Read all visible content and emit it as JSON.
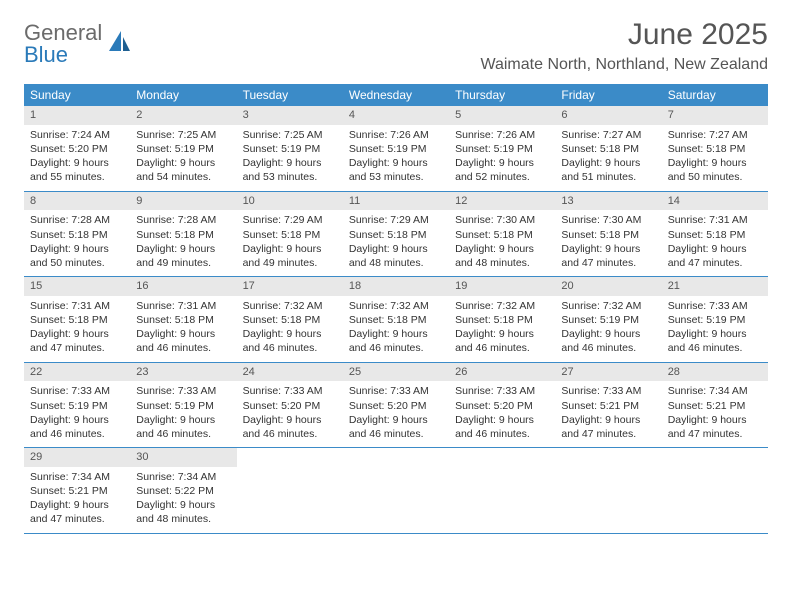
{
  "brand": {
    "part1": "General",
    "part2": "Blue"
  },
  "title": "June 2025",
  "location": "Waimate North, Northland, New Zealand",
  "colors": {
    "header_bg": "#3b8bc8",
    "header_text": "#ffffff",
    "daynum_bg": "#e8e8e8",
    "text": "#333333",
    "brand_gray": "#6b6b6b",
    "brand_blue": "#2a7ab9",
    "rule": "#3b8bc8"
  },
  "day_headers": [
    "Sunday",
    "Monday",
    "Tuesday",
    "Wednesday",
    "Thursday",
    "Friday",
    "Saturday"
  ],
  "weeks": [
    [
      {
        "n": "1",
        "sr": "Sunrise: 7:24 AM",
        "ss": "Sunset: 5:20 PM",
        "d1": "Daylight: 9 hours",
        "d2": "and 55 minutes."
      },
      {
        "n": "2",
        "sr": "Sunrise: 7:25 AM",
        "ss": "Sunset: 5:19 PM",
        "d1": "Daylight: 9 hours",
        "d2": "and 54 minutes."
      },
      {
        "n": "3",
        "sr": "Sunrise: 7:25 AM",
        "ss": "Sunset: 5:19 PM",
        "d1": "Daylight: 9 hours",
        "d2": "and 53 minutes."
      },
      {
        "n": "4",
        "sr": "Sunrise: 7:26 AM",
        "ss": "Sunset: 5:19 PM",
        "d1": "Daylight: 9 hours",
        "d2": "and 53 minutes."
      },
      {
        "n": "5",
        "sr": "Sunrise: 7:26 AM",
        "ss": "Sunset: 5:19 PM",
        "d1": "Daylight: 9 hours",
        "d2": "and 52 minutes."
      },
      {
        "n": "6",
        "sr": "Sunrise: 7:27 AM",
        "ss": "Sunset: 5:18 PM",
        "d1": "Daylight: 9 hours",
        "d2": "and 51 minutes."
      },
      {
        "n": "7",
        "sr": "Sunrise: 7:27 AM",
        "ss": "Sunset: 5:18 PM",
        "d1": "Daylight: 9 hours",
        "d2": "and 50 minutes."
      }
    ],
    [
      {
        "n": "8",
        "sr": "Sunrise: 7:28 AM",
        "ss": "Sunset: 5:18 PM",
        "d1": "Daylight: 9 hours",
        "d2": "and 50 minutes."
      },
      {
        "n": "9",
        "sr": "Sunrise: 7:28 AM",
        "ss": "Sunset: 5:18 PM",
        "d1": "Daylight: 9 hours",
        "d2": "and 49 minutes."
      },
      {
        "n": "10",
        "sr": "Sunrise: 7:29 AM",
        "ss": "Sunset: 5:18 PM",
        "d1": "Daylight: 9 hours",
        "d2": "and 49 minutes."
      },
      {
        "n": "11",
        "sr": "Sunrise: 7:29 AM",
        "ss": "Sunset: 5:18 PM",
        "d1": "Daylight: 9 hours",
        "d2": "and 48 minutes."
      },
      {
        "n": "12",
        "sr": "Sunrise: 7:30 AM",
        "ss": "Sunset: 5:18 PM",
        "d1": "Daylight: 9 hours",
        "d2": "and 48 minutes."
      },
      {
        "n": "13",
        "sr": "Sunrise: 7:30 AM",
        "ss": "Sunset: 5:18 PM",
        "d1": "Daylight: 9 hours",
        "d2": "and 47 minutes."
      },
      {
        "n": "14",
        "sr": "Sunrise: 7:31 AM",
        "ss": "Sunset: 5:18 PM",
        "d1": "Daylight: 9 hours",
        "d2": "and 47 minutes."
      }
    ],
    [
      {
        "n": "15",
        "sr": "Sunrise: 7:31 AM",
        "ss": "Sunset: 5:18 PM",
        "d1": "Daylight: 9 hours",
        "d2": "and 47 minutes."
      },
      {
        "n": "16",
        "sr": "Sunrise: 7:31 AM",
        "ss": "Sunset: 5:18 PM",
        "d1": "Daylight: 9 hours",
        "d2": "and 46 minutes."
      },
      {
        "n": "17",
        "sr": "Sunrise: 7:32 AM",
        "ss": "Sunset: 5:18 PM",
        "d1": "Daylight: 9 hours",
        "d2": "and 46 minutes."
      },
      {
        "n": "18",
        "sr": "Sunrise: 7:32 AM",
        "ss": "Sunset: 5:18 PM",
        "d1": "Daylight: 9 hours",
        "d2": "and 46 minutes."
      },
      {
        "n": "19",
        "sr": "Sunrise: 7:32 AM",
        "ss": "Sunset: 5:18 PM",
        "d1": "Daylight: 9 hours",
        "d2": "and 46 minutes."
      },
      {
        "n": "20",
        "sr": "Sunrise: 7:32 AM",
        "ss": "Sunset: 5:19 PM",
        "d1": "Daylight: 9 hours",
        "d2": "and 46 minutes."
      },
      {
        "n": "21",
        "sr": "Sunrise: 7:33 AM",
        "ss": "Sunset: 5:19 PM",
        "d1": "Daylight: 9 hours",
        "d2": "and 46 minutes."
      }
    ],
    [
      {
        "n": "22",
        "sr": "Sunrise: 7:33 AM",
        "ss": "Sunset: 5:19 PM",
        "d1": "Daylight: 9 hours",
        "d2": "and 46 minutes."
      },
      {
        "n": "23",
        "sr": "Sunrise: 7:33 AM",
        "ss": "Sunset: 5:19 PM",
        "d1": "Daylight: 9 hours",
        "d2": "and 46 minutes."
      },
      {
        "n": "24",
        "sr": "Sunrise: 7:33 AM",
        "ss": "Sunset: 5:20 PM",
        "d1": "Daylight: 9 hours",
        "d2": "and 46 minutes."
      },
      {
        "n": "25",
        "sr": "Sunrise: 7:33 AM",
        "ss": "Sunset: 5:20 PM",
        "d1": "Daylight: 9 hours",
        "d2": "and 46 minutes."
      },
      {
        "n": "26",
        "sr": "Sunrise: 7:33 AM",
        "ss": "Sunset: 5:20 PM",
        "d1": "Daylight: 9 hours",
        "d2": "and 46 minutes."
      },
      {
        "n": "27",
        "sr": "Sunrise: 7:33 AM",
        "ss": "Sunset: 5:21 PM",
        "d1": "Daylight: 9 hours",
        "d2": "and 47 minutes."
      },
      {
        "n": "28",
        "sr": "Sunrise: 7:34 AM",
        "ss": "Sunset: 5:21 PM",
        "d1": "Daylight: 9 hours",
        "d2": "and 47 minutes."
      }
    ],
    [
      {
        "n": "29",
        "sr": "Sunrise: 7:34 AM",
        "ss": "Sunset: 5:21 PM",
        "d1": "Daylight: 9 hours",
        "d2": "and 47 minutes."
      },
      {
        "n": "30",
        "sr": "Sunrise: 7:34 AM",
        "ss": "Sunset: 5:22 PM",
        "d1": "Daylight: 9 hours",
        "d2": "and 48 minutes."
      },
      null,
      null,
      null,
      null,
      null
    ]
  ]
}
